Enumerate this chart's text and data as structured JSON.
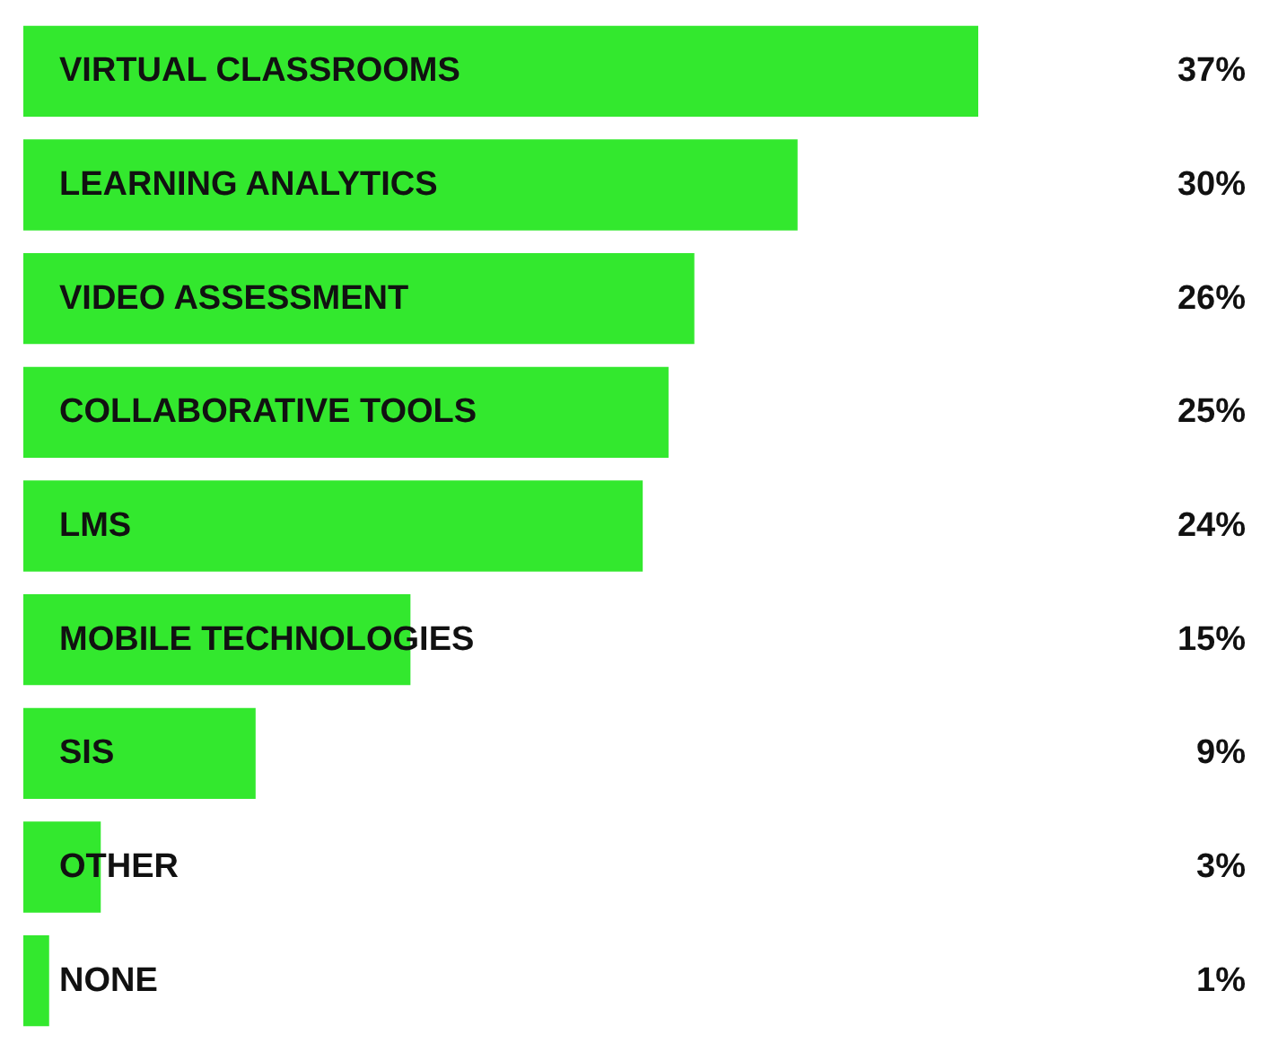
{
  "chart_data": {
    "type": "bar",
    "orientation": "horizontal",
    "categories": [
      "VIRTUAL CLASSROOMS",
      "LEARNING ANALYTICS",
      "VIDEO ASSESSMENT",
      "COLLABORATIVE TOOLS",
      "LMS",
      "MOBILE TECHNOLOGIES",
      "SIS",
      "OTHER",
      "NONE"
    ],
    "values": [
      37,
      30,
      26,
      25,
      24,
      15,
      9,
      3,
      1
    ],
    "value_labels": [
      "37%",
      "30%",
      "26%",
      "25%",
      "24%",
      "15%",
      "9%",
      "3%",
      "1%"
    ],
    "color": "#33e82e"
  }
}
